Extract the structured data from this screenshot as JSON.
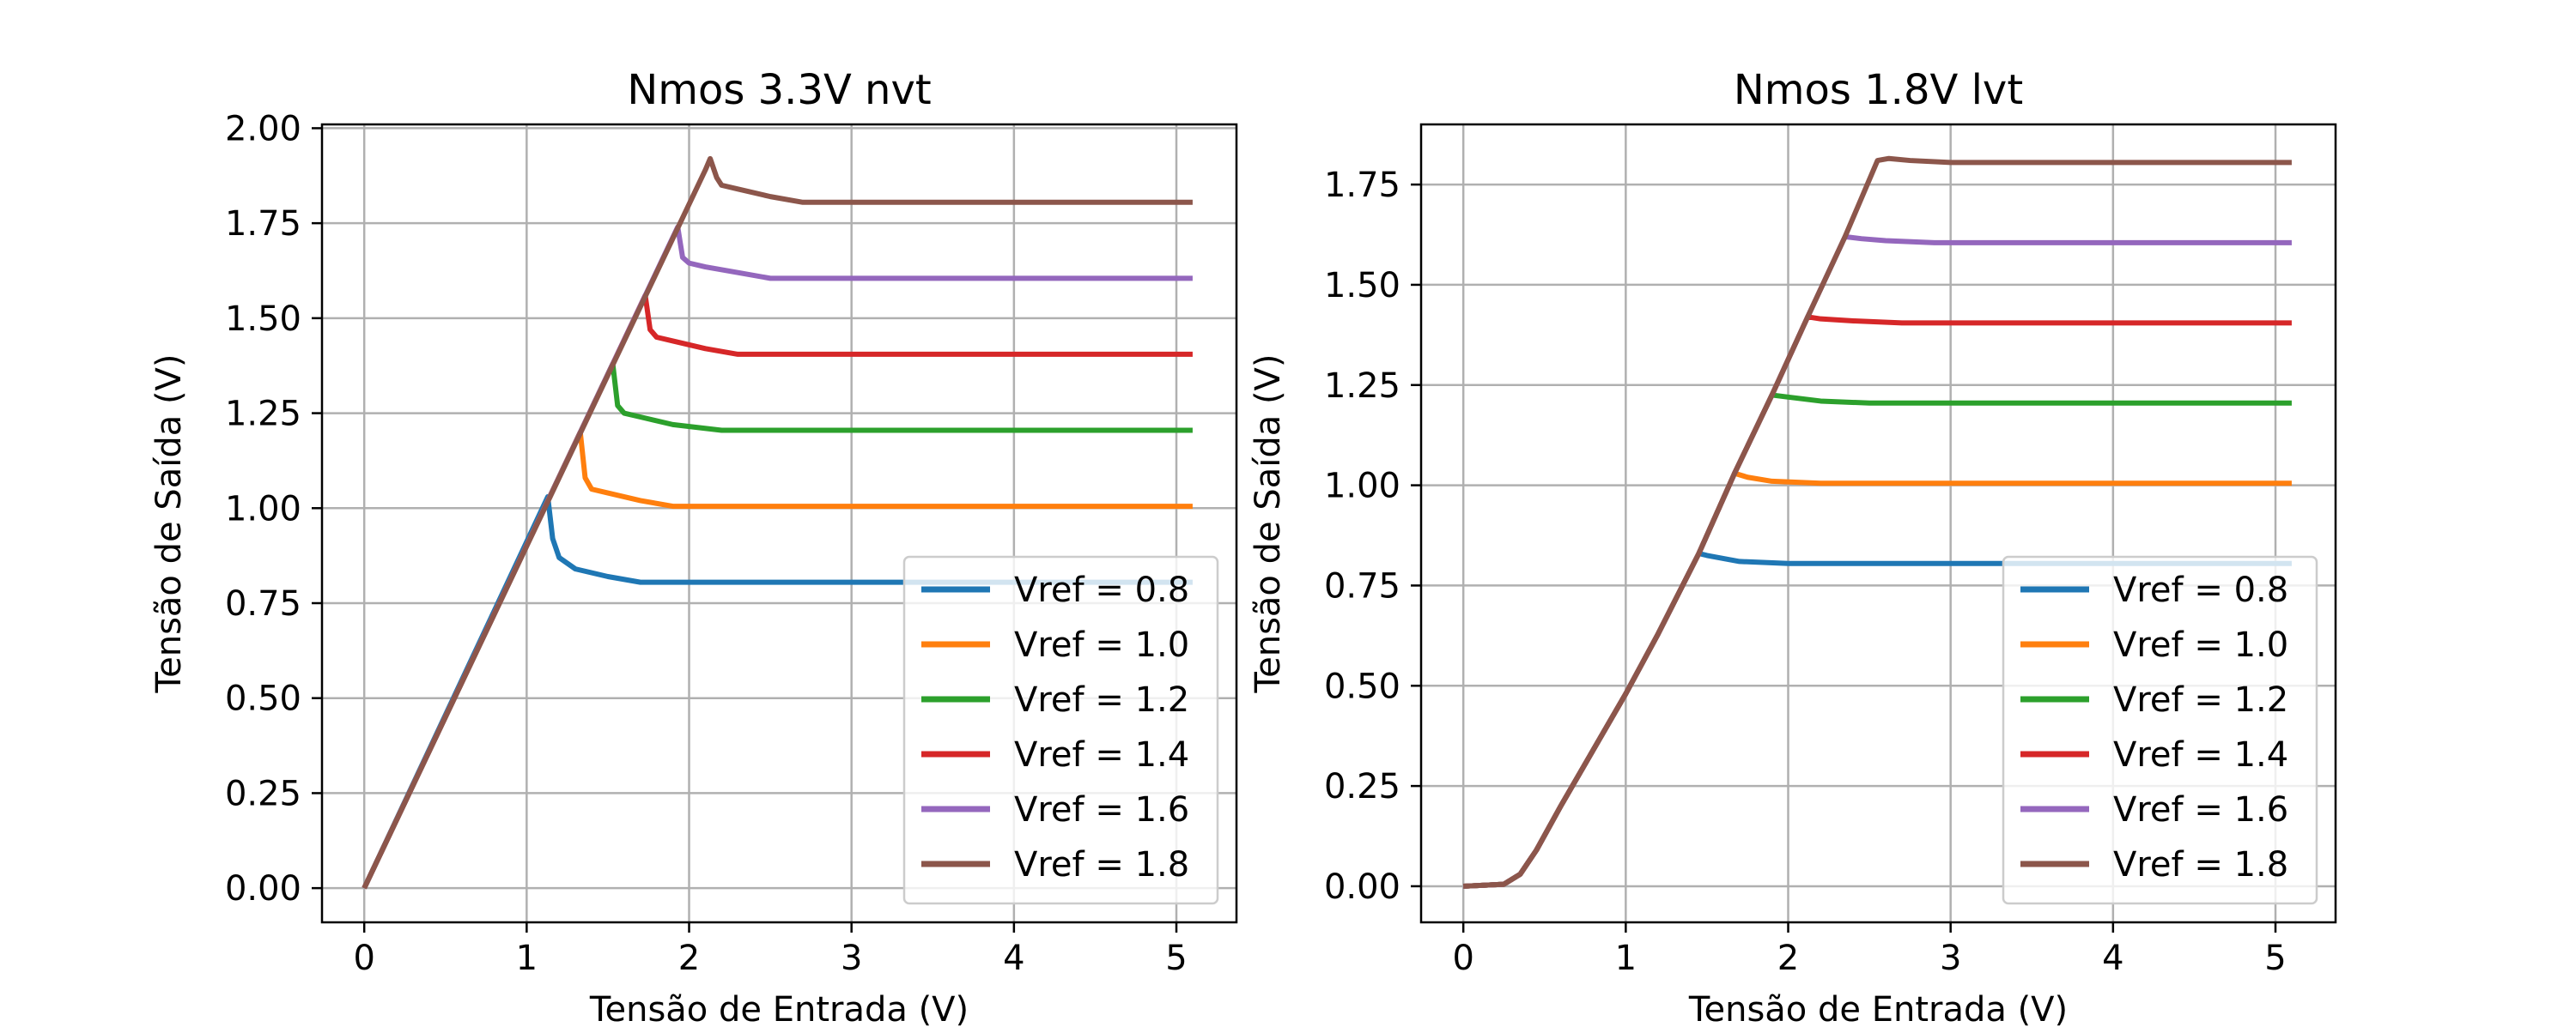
{
  "chart_data": [
    {
      "type": "line",
      "title": "Nmos 3.3V nvt",
      "xlabel": "Tensão de Entrada (V)",
      "ylabel": "Tensão de Saída (V)",
      "xlim": [
        -0.26,
        5.37
      ],
      "ylim": [
        -0.09,
        2.01
      ],
      "xticks": [
        0,
        1,
        2,
        3,
        4,
        5
      ],
      "xtick_labels": [
        "0",
        "1",
        "2",
        "3",
        "4",
        "5"
      ],
      "yticks": [
        0,
        0.25,
        0.5,
        0.75,
        1.0,
        1.25,
        1.5,
        1.75,
        2.0
      ],
      "ytick_labels": [
        "0.00",
        "0.25",
        "0.50",
        "0.75",
        "1.00",
        "1.25",
        "1.50",
        "1.75",
        "2.00"
      ],
      "grid": true,
      "legend_position": "lower-right",
      "series": [
        {
          "name": "Vref = 0.8",
          "color": "#1f77b4",
          "x": [
            0,
            1.13,
            1.16,
            1.2,
            1.3,
            1.5,
            1.7,
            2.0,
            3.0,
            4.0,
            5.1
          ],
          "y": [
            0,
            1.03,
            0.92,
            0.87,
            0.84,
            0.82,
            0.805,
            0.805,
            0.805,
            0.805,
            0.805
          ]
        },
        {
          "name": "Vref = 1.0",
          "color": "#ff7f0e",
          "x": [
            0,
            1.33,
            1.36,
            1.4,
            1.5,
            1.7,
            1.9,
            2.2,
            3.0,
            4.0,
            5.1
          ],
          "y": [
            0,
            1.2,
            1.08,
            1.05,
            1.04,
            1.02,
            1.005,
            1.005,
            1.005,
            1.005,
            1.005
          ]
        },
        {
          "name": "Vref = 1.2",
          "color": "#2ca02c",
          "x": [
            0,
            1.53,
            1.56,
            1.6,
            1.7,
            1.9,
            2.2,
            2.5,
            3.0,
            4.0,
            5.1
          ],
          "y": [
            0,
            1.38,
            1.27,
            1.25,
            1.24,
            1.22,
            1.205,
            1.205,
            1.205,
            1.205,
            1.205
          ]
        },
        {
          "name": "Vref = 1.4",
          "color": "#d62728",
          "x": [
            0,
            1.73,
            1.76,
            1.8,
            1.9,
            2.1,
            2.3,
            2.6,
            3.0,
            4.0,
            5.1
          ],
          "y": [
            0,
            1.56,
            1.47,
            1.45,
            1.44,
            1.42,
            1.405,
            1.405,
            1.405,
            1.405,
            1.405
          ]
        },
        {
          "name": "Vref = 1.6",
          "color": "#9467bd",
          "x": [
            0,
            1.93,
            1.96,
            2.0,
            2.1,
            2.3,
            2.5,
            2.8,
            3.0,
            4.0,
            5.1
          ],
          "y": [
            0,
            1.74,
            1.66,
            1.645,
            1.635,
            1.62,
            1.605,
            1.605,
            1.605,
            1.605,
            1.605
          ]
        },
        {
          "name": "Vref = 1.8",
          "color": "#8c564b",
          "x": [
            0,
            2.1,
            2.13,
            2.17,
            2.2,
            2.3,
            2.5,
            2.7,
            3.0,
            4.0,
            5.1
          ],
          "y": [
            0,
            1.89,
            1.92,
            1.87,
            1.85,
            1.84,
            1.82,
            1.805,
            1.805,
            1.805,
            1.805
          ]
        }
      ]
    },
    {
      "type": "line",
      "title": "Nmos 1.8V lvt",
      "xlabel": "Tensão de Entrada (V)",
      "ylabel": "Tensão de Saída (V)",
      "xlim": [
        -0.26,
        5.37
      ],
      "ylim": [
        -0.09,
        1.9
      ],
      "xticks": [
        0,
        1,
        2,
        3,
        4,
        5
      ],
      "xtick_labels": [
        "0",
        "1",
        "2",
        "3",
        "4",
        "5"
      ],
      "yticks": [
        0,
        0.25,
        0.5,
        0.75,
        1.0,
        1.25,
        1.5,
        1.75
      ],
      "ytick_labels": [
        "0.00",
        "0.25",
        "0.50",
        "0.75",
        "1.00",
        "1.25",
        "1.50",
        "1.75"
      ],
      "grid": true,
      "legend_position": "lower-right",
      "series": [
        {
          "name": "Vref = 0.8",
          "color": "#1f77b4",
          "x": [
            0,
            0.25,
            0.35,
            0.45,
            0.6,
            0.8,
            1.0,
            1.2,
            1.45,
            1.5,
            1.7,
            2.0,
            3.0,
            4.0,
            5.1
          ],
          "y": [
            0,
            0.005,
            0.03,
            0.09,
            0.2,
            0.34,
            0.48,
            0.63,
            0.83,
            0.825,
            0.81,
            0.805,
            0.805,
            0.805,
            0.805
          ]
        },
        {
          "name": "Vref = 1.0",
          "color": "#ff7f0e",
          "x": [
            0,
            0.25,
            0.35,
            0.45,
            0.6,
            0.8,
            1.0,
            1.2,
            1.45,
            1.67,
            1.75,
            1.9,
            2.2,
            3.0,
            4.0,
            5.1
          ],
          "y": [
            0,
            0.005,
            0.03,
            0.09,
            0.2,
            0.34,
            0.48,
            0.63,
            0.83,
            1.03,
            1.02,
            1.01,
            1.005,
            1.005,
            1.005,
            1.005
          ]
        },
        {
          "name": "Vref = 1.2",
          "color": "#2ca02c",
          "x": [
            0,
            0.25,
            0.35,
            0.45,
            0.6,
            0.8,
            1.0,
            1.2,
            1.45,
            1.67,
            1.9,
            2.0,
            2.2,
            2.5,
            3.0,
            4.0,
            5.1
          ],
          "y": [
            0,
            0.005,
            0.03,
            0.09,
            0.2,
            0.34,
            0.48,
            0.63,
            0.83,
            1.03,
            1.225,
            1.22,
            1.21,
            1.205,
            1.205,
            1.205,
            1.205
          ]
        },
        {
          "name": "Vref = 1.4",
          "color": "#d62728",
          "x": [
            0,
            0.25,
            0.35,
            0.45,
            0.6,
            0.8,
            1.0,
            1.2,
            1.45,
            1.67,
            1.9,
            2.12,
            2.2,
            2.4,
            2.7,
            3.0,
            4.0,
            5.1
          ],
          "y": [
            0,
            0.005,
            0.03,
            0.09,
            0.2,
            0.34,
            0.48,
            0.63,
            0.83,
            1.03,
            1.225,
            1.42,
            1.415,
            1.41,
            1.405,
            1.405,
            1.405,
            1.405
          ]
        },
        {
          "name": "Vref = 1.6",
          "color": "#9467bd",
          "x": [
            0,
            0.25,
            0.35,
            0.45,
            0.6,
            0.8,
            1.0,
            1.2,
            1.45,
            1.67,
            1.9,
            2.12,
            2.35,
            2.45,
            2.6,
            2.9,
            3.0,
            4.0,
            5.1
          ],
          "y": [
            0,
            0.005,
            0.03,
            0.09,
            0.2,
            0.34,
            0.48,
            0.63,
            0.83,
            1.03,
            1.225,
            1.42,
            1.62,
            1.615,
            1.61,
            1.605,
            1.605,
            1.605,
            1.605
          ]
        },
        {
          "name": "Vref = 1.8",
          "color": "#8c564b",
          "x": [
            0,
            0.25,
            0.35,
            0.45,
            0.6,
            0.8,
            1.0,
            1.2,
            1.45,
            1.67,
            1.9,
            2.12,
            2.35,
            2.55,
            2.62,
            2.75,
            3.0,
            4.0,
            5.1
          ],
          "y": [
            0,
            0.005,
            0.03,
            0.09,
            0.2,
            0.34,
            0.48,
            0.63,
            0.83,
            1.03,
            1.225,
            1.42,
            1.62,
            1.81,
            1.815,
            1.81,
            1.805,
            1.805,
            1.805
          ]
        }
      ]
    }
  ]
}
